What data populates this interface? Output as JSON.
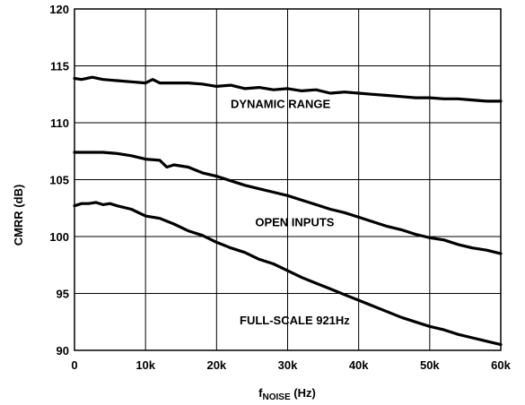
{
  "chart_data": {
    "type": "line",
    "ylabel": "CMRR (dB)",
    "xlabel": {
      "main": "f",
      "sub": "NOISE",
      "unit": " (Hz)"
    },
    "xlim": [
      0,
      60000
    ],
    "ylim": [
      90,
      120
    ],
    "grid": true,
    "x_ticks": [
      {
        "value": 0,
        "label": "0"
      },
      {
        "value": 10000,
        "label": "10k"
      },
      {
        "value": 20000,
        "label": "20k"
      },
      {
        "value": 30000,
        "label": "30k"
      },
      {
        "value": 40000,
        "label": "40k"
      },
      {
        "value": 50000,
        "label": "50k"
      },
      {
        "value": 60000,
        "label": "60k"
      }
    ],
    "y_ticks": [
      {
        "value": 90,
        "label": "90"
      },
      {
        "value": 95,
        "label": "95"
      },
      {
        "value": 100,
        "label": "100"
      },
      {
        "value": 105,
        "label": "105"
      },
      {
        "value": 110,
        "label": "110"
      },
      {
        "value": 115,
        "label": "115"
      },
      {
        "value": 120,
        "label": "120"
      }
    ],
    "series": [
      {
        "x": [
          0,
          1000,
          2500,
          4000,
          6000,
          8000,
          10000,
          11000,
          12000,
          14000,
          16000,
          18000,
          20000,
          22000,
          24000,
          26000,
          28000,
          30000,
          32000,
          34000,
          36000,
          38000,
          40000,
          42000,
          44000,
          46000,
          48000,
          50000,
          52000,
          54000,
          56000,
          58000,
          60000
        ],
        "y": [
          113.9,
          113.8,
          114.0,
          113.8,
          113.7,
          113.6,
          113.5,
          113.8,
          113.5,
          113.5,
          113.5,
          113.4,
          113.2,
          113.3,
          113.0,
          113.1,
          112.9,
          113.0,
          112.8,
          112.9,
          112.6,
          112.7,
          112.6,
          112.5,
          112.4,
          112.3,
          112.2,
          112.2,
          112.1,
          112.1,
          112.0,
          111.9,
          111.9
        ]
      },
      {
        "x": [
          0,
          2000,
          4000,
          6000,
          8000,
          10000,
          12000,
          13000,
          14000,
          16000,
          18000,
          20000,
          22000,
          24000,
          26000,
          28000,
          30000,
          32000,
          34000,
          36000,
          38000,
          40000,
          42000,
          44000,
          46000,
          48000,
          50000,
          52000,
          54000,
          56000,
          58000,
          60000
        ],
        "y": [
          107.4,
          107.4,
          107.4,
          107.3,
          107.1,
          106.8,
          106.7,
          106.1,
          106.3,
          106.1,
          105.6,
          105.3,
          104.9,
          104.5,
          104.2,
          103.9,
          103.6,
          103.2,
          102.8,
          102.4,
          102.1,
          101.7,
          101.3,
          100.9,
          100.6,
          100.2,
          99.9,
          99.7,
          99.3,
          99.0,
          98.8,
          98.5
        ]
      },
      {
        "x": [
          0,
          1000,
          2000,
          3000,
          4000,
          5000,
          6000,
          8000,
          10000,
          12000,
          14000,
          16000,
          18000,
          20000,
          22000,
          24000,
          26000,
          28000,
          30000,
          32000,
          34000,
          36000,
          38000,
          40000,
          42000,
          44000,
          46000,
          48000,
          50000,
          52000,
          54000,
          56000,
          58000,
          60000
        ],
        "y": [
          102.7,
          102.9,
          102.9,
          103.0,
          102.8,
          102.9,
          102.7,
          102.4,
          101.8,
          101.6,
          101.1,
          100.5,
          100.1,
          99.5,
          99.0,
          98.6,
          98.0,
          97.6,
          97.0,
          96.4,
          95.9,
          95.4,
          94.9,
          94.4,
          93.9,
          93.4,
          92.9,
          92.5,
          92.1,
          91.8,
          91.4,
          91.1,
          90.8,
          90.5
        ]
      }
    ],
    "annotations": [
      {
        "text": "DYNAMIC RANGE",
        "x": 29000,
        "y": 111.3
      },
      {
        "text": "OPEN INPUTS",
        "x": 31000,
        "y": 100.9
      },
      {
        "text": "FULL-SCALE 921Hz",
        "x": 31000,
        "y": 92.3
      }
    ]
  }
}
